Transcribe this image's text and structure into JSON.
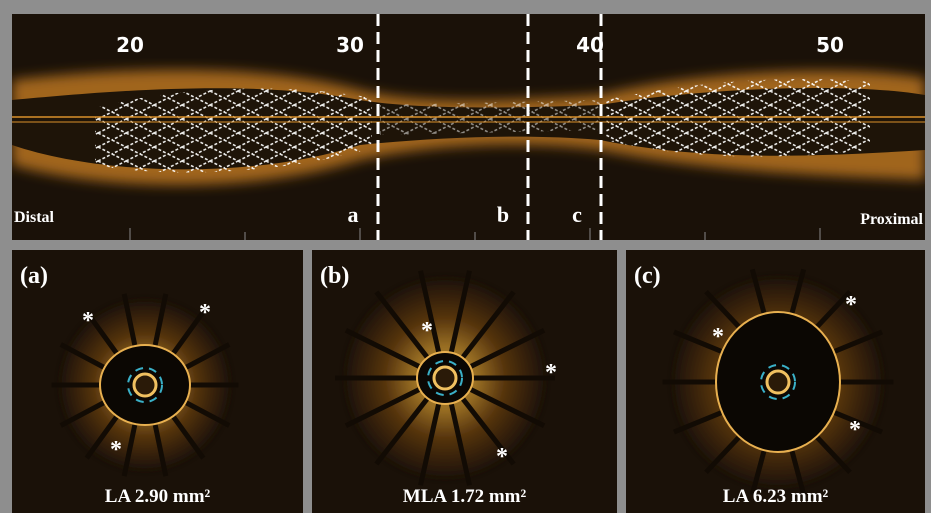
{
  "top_panel": {
    "ruler_labels": [
      "20",
      "30",
      "40",
      "50"
    ],
    "left_label": "Distal",
    "right_label": "Proximal",
    "section_marks": [
      "a",
      "b",
      "c"
    ]
  },
  "panels": [
    {
      "label": "(a)",
      "caption": "LA 2.90 mm²",
      "asterisks": [
        "*",
        "*",
        "*"
      ]
    },
    {
      "label": "(b)",
      "caption": "MLA 1.72 mm²",
      "asterisks": [
        "*",
        "*",
        "*"
      ]
    },
    {
      "label": "(c)",
      "caption": "LA 6.23 mm²",
      "asterisks": [
        "*",
        "*",
        "*"
      ]
    }
  ]
}
